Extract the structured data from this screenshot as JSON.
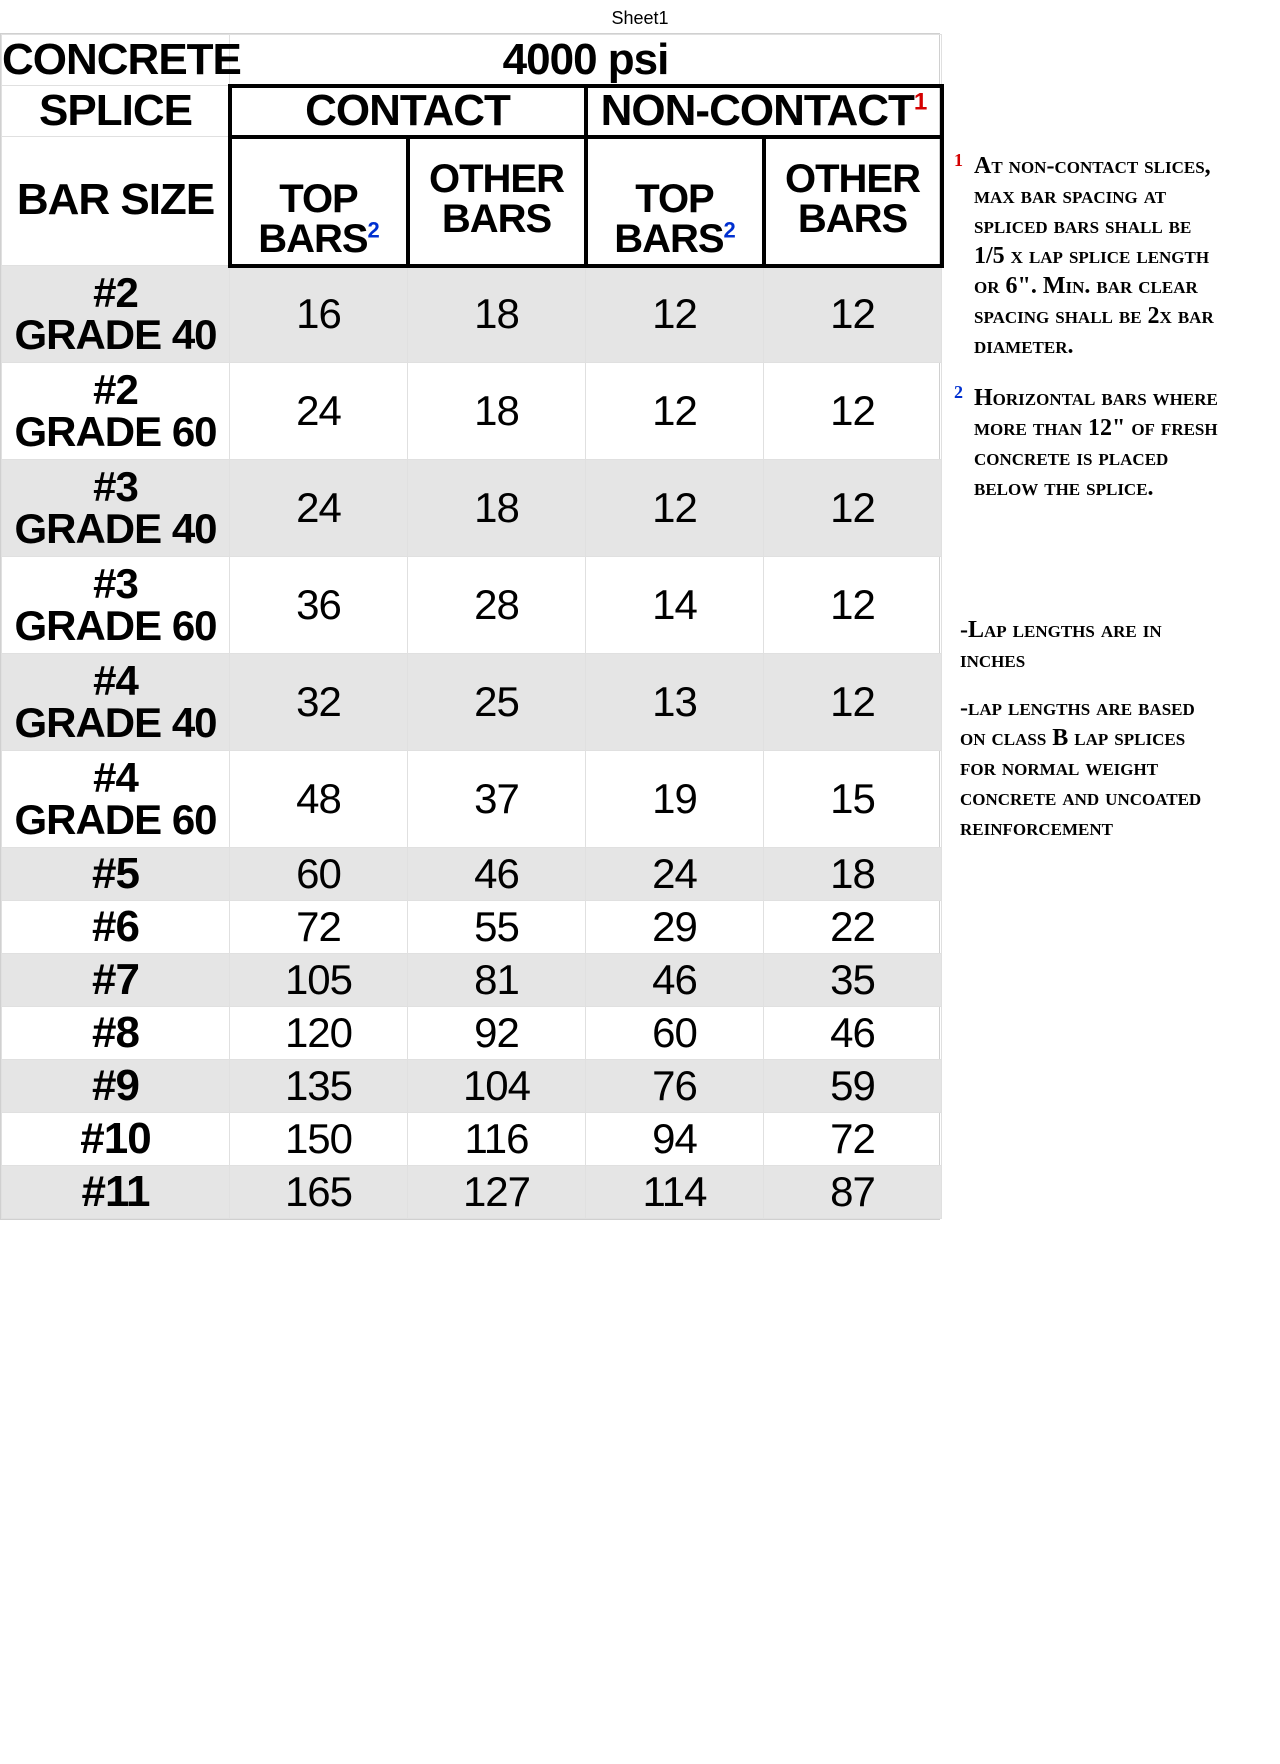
{
  "sheet_label": "Sheet1",
  "header": {
    "concrete": "CONCRETE",
    "splice": "SPLICE",
    "bar_size": "BAR SIZE",
    "psi": "4000 psi",
    "contact": "CONTACT",
    "non_contact": "NON-CONTACT",
    "non_contact_sup": "1",
    "top_bars": "TOP\nBARS",
    "top_bars_sup": "2",
    "other_bars": "OTHER\nBARS"
  },
  "rows": [
    {
      "label": "#2\nGRADE 40",
      "cells": [
        "16",
        "18",
        "12",
        "12"
      ],
      "two_line": true
    },
    {
      "label": "#2\nGRADE 60",
      "cells": [
        "24",
        "18",
        "12",
        "12"
      ],
      "two_line": true
    },
    {
      "label": "#3\nGRADE 40",
      "cells": [
        "24",
        "18",
        "12",
        "12"
      ],
      "two_line": true
    },
    {
      "label": "#3\nGRADE 60",
      "cells": [
        "36",
        "28",
        "14",
        "12"
      ],
      "two_line": true
    },
    {
      "label": "#4\nGRADE 40",
      "cells": [
        "32",
        "25",
        "13",
        "12"
      ],
      "two_line": true
    },
    {
      "label": "#4\nGRADE 60",
      "cells": [
        "48",
        "37",
        "19",
        "15"
      ],
      "two_line": true
    },
    {
      "label": "#5",
      "cells": [
        "60",
        "46",
        "24",
        "18"
      ],
      "two_line": false
    },
    {
      "label": "#6",
      "cells": [
        "72",
        "55",
        "29",
        "22"
      ],
      "two_line": false
    },
    {
      "label": "#7",
      "cells": [
        "105",
        "81",
        "46",
        "35"
      ],
      "two_line": false
    },
    {
      "label": "#8",
      "cells": [
        "120",
        "92",
        "60",
        "46"
      ],
      "two_line": false
    },
    {
      "label": "#9",
      "cells": [
        "135",
        "104",
        "76",
        "59"
      ],
      "two_line": false
    },
    {
      "label": "#10",
      "cells": [
        "150",
        "116",
        "94",
        "72"
      ],
      "two_line": false
    },
    {
      "label": "#11",
      "cells": [
        "165",
        "127",
        "114",
        "87"
      ],
      "two_line": false
    }
  ],
  "notes": {
    "n1_sup": "1",
    "n1": "At non-contact slices, max bar spacing at spliced bars shall be 1/5 x lap splice length or 6\". Min. bar clear spacing shall be 2x bar diameter.",
    "n2_sup": "2",
    "n2": "Horizontal bars where more than 12\" of fresh concrete is placed below the splice.",
    "n3": "-Lap lengths are in inches",
    "n4": "-lap lengths are based on class B lap splices for normal weight concrete and uncoated reinforcement"
  }
}
